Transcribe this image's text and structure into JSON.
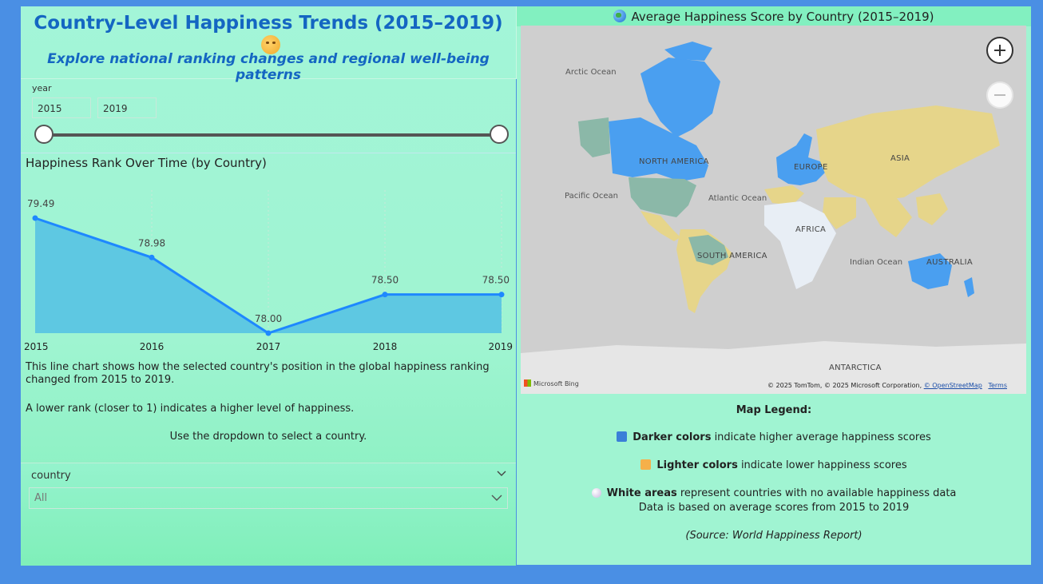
{
  "header": {
    "title": "Country-Level Happiness Trends (2015–2019)",
    "emoji": "smiling-face-icon",
    "subtitle": "Explore national ranking changes and regional well-being patterns"
  },
  "year_slicer": {
    "label": "year",
    "start_value": "2015",
    "end_value": "2019",
    "range_fraction": [
      0,
      1
    ]
  },
  "line_chart": {
    "title": "Happiness Rank Over Time (by Country)",
    "color": "#1e88ff",
    "area_color": "#5ec8e2"
  },
  "chart_data": {
    "type": "area",
    "categories": [
      "2015",
      "2016",
      "2017",
      "2018",
      "2019"
    ],
    "values": [
      79.49,
      78.98,
      78.0,
      78.5,
      78.5
    ],
    "data_labels": [
      "79.49",
      "78.98",
      "78.00",
      "78.50",
      "78.50"
    ],
    "title": "Happiness Rank Over Time (by Country)",
    "xlabel": "",
    "ylabel": "",
    "ylim": [
      78.0,
      79.49
    ],
    "grid": false
  },
  "description": {
    "line1": "This line chart shows how the selected country's position in the global happiness ranking changed from 2015 to 2019.",
    "line2": "A lower rank (closer to 1) indicates a higher level of happiness.",
    "line3": "Use the dropdown to select a country."
  },
  "country_slicer": {
    "label": "country",
    "value": "All"
  },
  "map": {
    "title": "Average Happiness Score by Country (2015–2019)",
    "labels": {
      "arctic": "Arctic Ocean",
      "pacific": "Pacific Ocean",
      "atlantic": "Atlantic Ocean",
      "indian": "Indian Ocean",
      "north_america": "NORTH AMERICA",
      "south_america": "SOUTH AMERICA",
      "europe": "EUROPE",
      "asia": "ASIA",
      "africa": "AFRICA",
      "australia": "AUSTRALIA",
      "antarctica": "ANTARCTICA"
    },
    "logo_text": "Microsoft Bing",
    "attribution_text": "© 2025 TomTom, © 2025 Microsoft Corporation,",
    "osm_link": "© OpenStreetMap",
    "terms_link": "Terms",
    "colors": {
      "high": "#4a9ff0",
      "mid": "#8bb8a8",
      "low": "#e6d58a",
      "nodata": "#e8eef5",
      "ocean": "#cfcfcf"
    }
  },
  "legend": {
    "title": "Map Legend:",
    "dark_bold": "Darker colors",
    "dark_text": " indicate higher average happiness scores",
    "light_bold": "Lighter colors",
    "light_text": " indicate lower happiness scores",
    "white_bold": "White areas",
    "white_text": " represent countries with no available happiness data",
    "basis": "Data is based on average scores from 2015 to 2019",
    "source": "(Source: World Happiness Report)",
    "dark_swatch": "#3a7fd8",
    "light_swatch": "#f5b04a"
  }
}
